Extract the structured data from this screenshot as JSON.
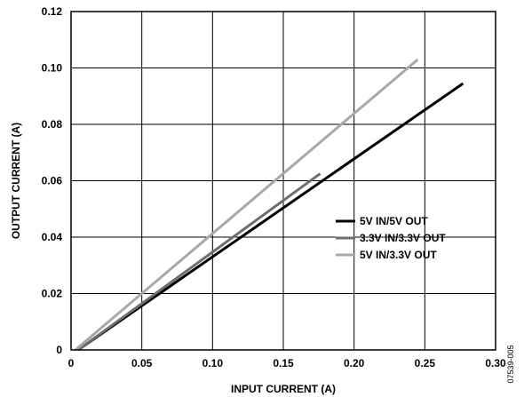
{
  "chart_data": {
    "type": "line",
    "xlabel": "INPUT CURRENT (A)",
    "ylabel": "OUTPUT CURRENT (A)",
    "xlim": [
      0,
      0.3
    ],
    "ylim": [
      0,
      0.12
    ],
    "x_ticks": [
      "0",
      "0.05",
      "0.10",
      "0.15",
      "0.20",
      "0.25",
      "0.30"
    ],
    "y_ticks": [
      "0",
      "0.02",
      "0.04",
      "0.06",
      "0.08",
      "0.10",
      "0.12"
    ],
    "grid": true,
    "legend_position": "center-right",
    "series": [
      {
        "name": "5V IN/5V OUT",
        "color": "#000000",
        "x": [
          0.005,
          0.277
        ],
        "y": [
          0.0,
          0.0945
        ]
      },
      {
        "name": "3.3V IN/3.3V OUT",
        "color": "#6e6e6e",
        "x": [
          0.005,
          0.176
        ],
        "y": [
          0.0,
          0.0625
        ]
      },
      {
        "name": "5V IN/3.3V OUT",
        "color": "#a8a8a8",
        "x": [
          0.003,
          0.245
        ],
        "y": [
          0.0,
          0.103
        ]
      }
    ]
  },
  "figure_id": "07539-005"
}
